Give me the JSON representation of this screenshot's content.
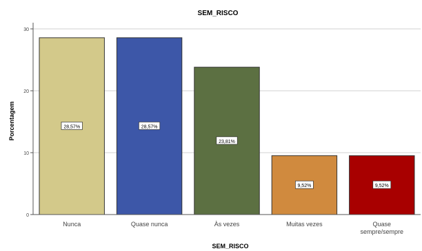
{
  "chart_data": {
    "type": "bar",
    "title": "SEM_RISCO",
    "xlabel": "SEM_RISCO",
    "ylabel": "Porcentagem",
    "categories": [
      "Nunca",
      "Quase nunca",
      "Às vezes",
      "Muitas vezes",
      "Quase sempre/sempre"
    ],
    "values": [
      28.57,
      28.57,
      23.81,
      9.52,
      9.52
    ],
    "value_labels": [
      "28,57%",
      "28,57%",
      "23,81%",
      "9,52%",
      "9,52%"
    ],
    "bar_colors": [
      "#d3c98a",
      "#3d57a8",
      "#5c7042",
      "#d08a3e",
      "#a80000"
    ],
    "ylim": [
      0,
      31
    ],
    "yticks": [
      0,
      10,
      20,
      30
    ],
    "grid": true,
    "legend": "none"
  }
}
